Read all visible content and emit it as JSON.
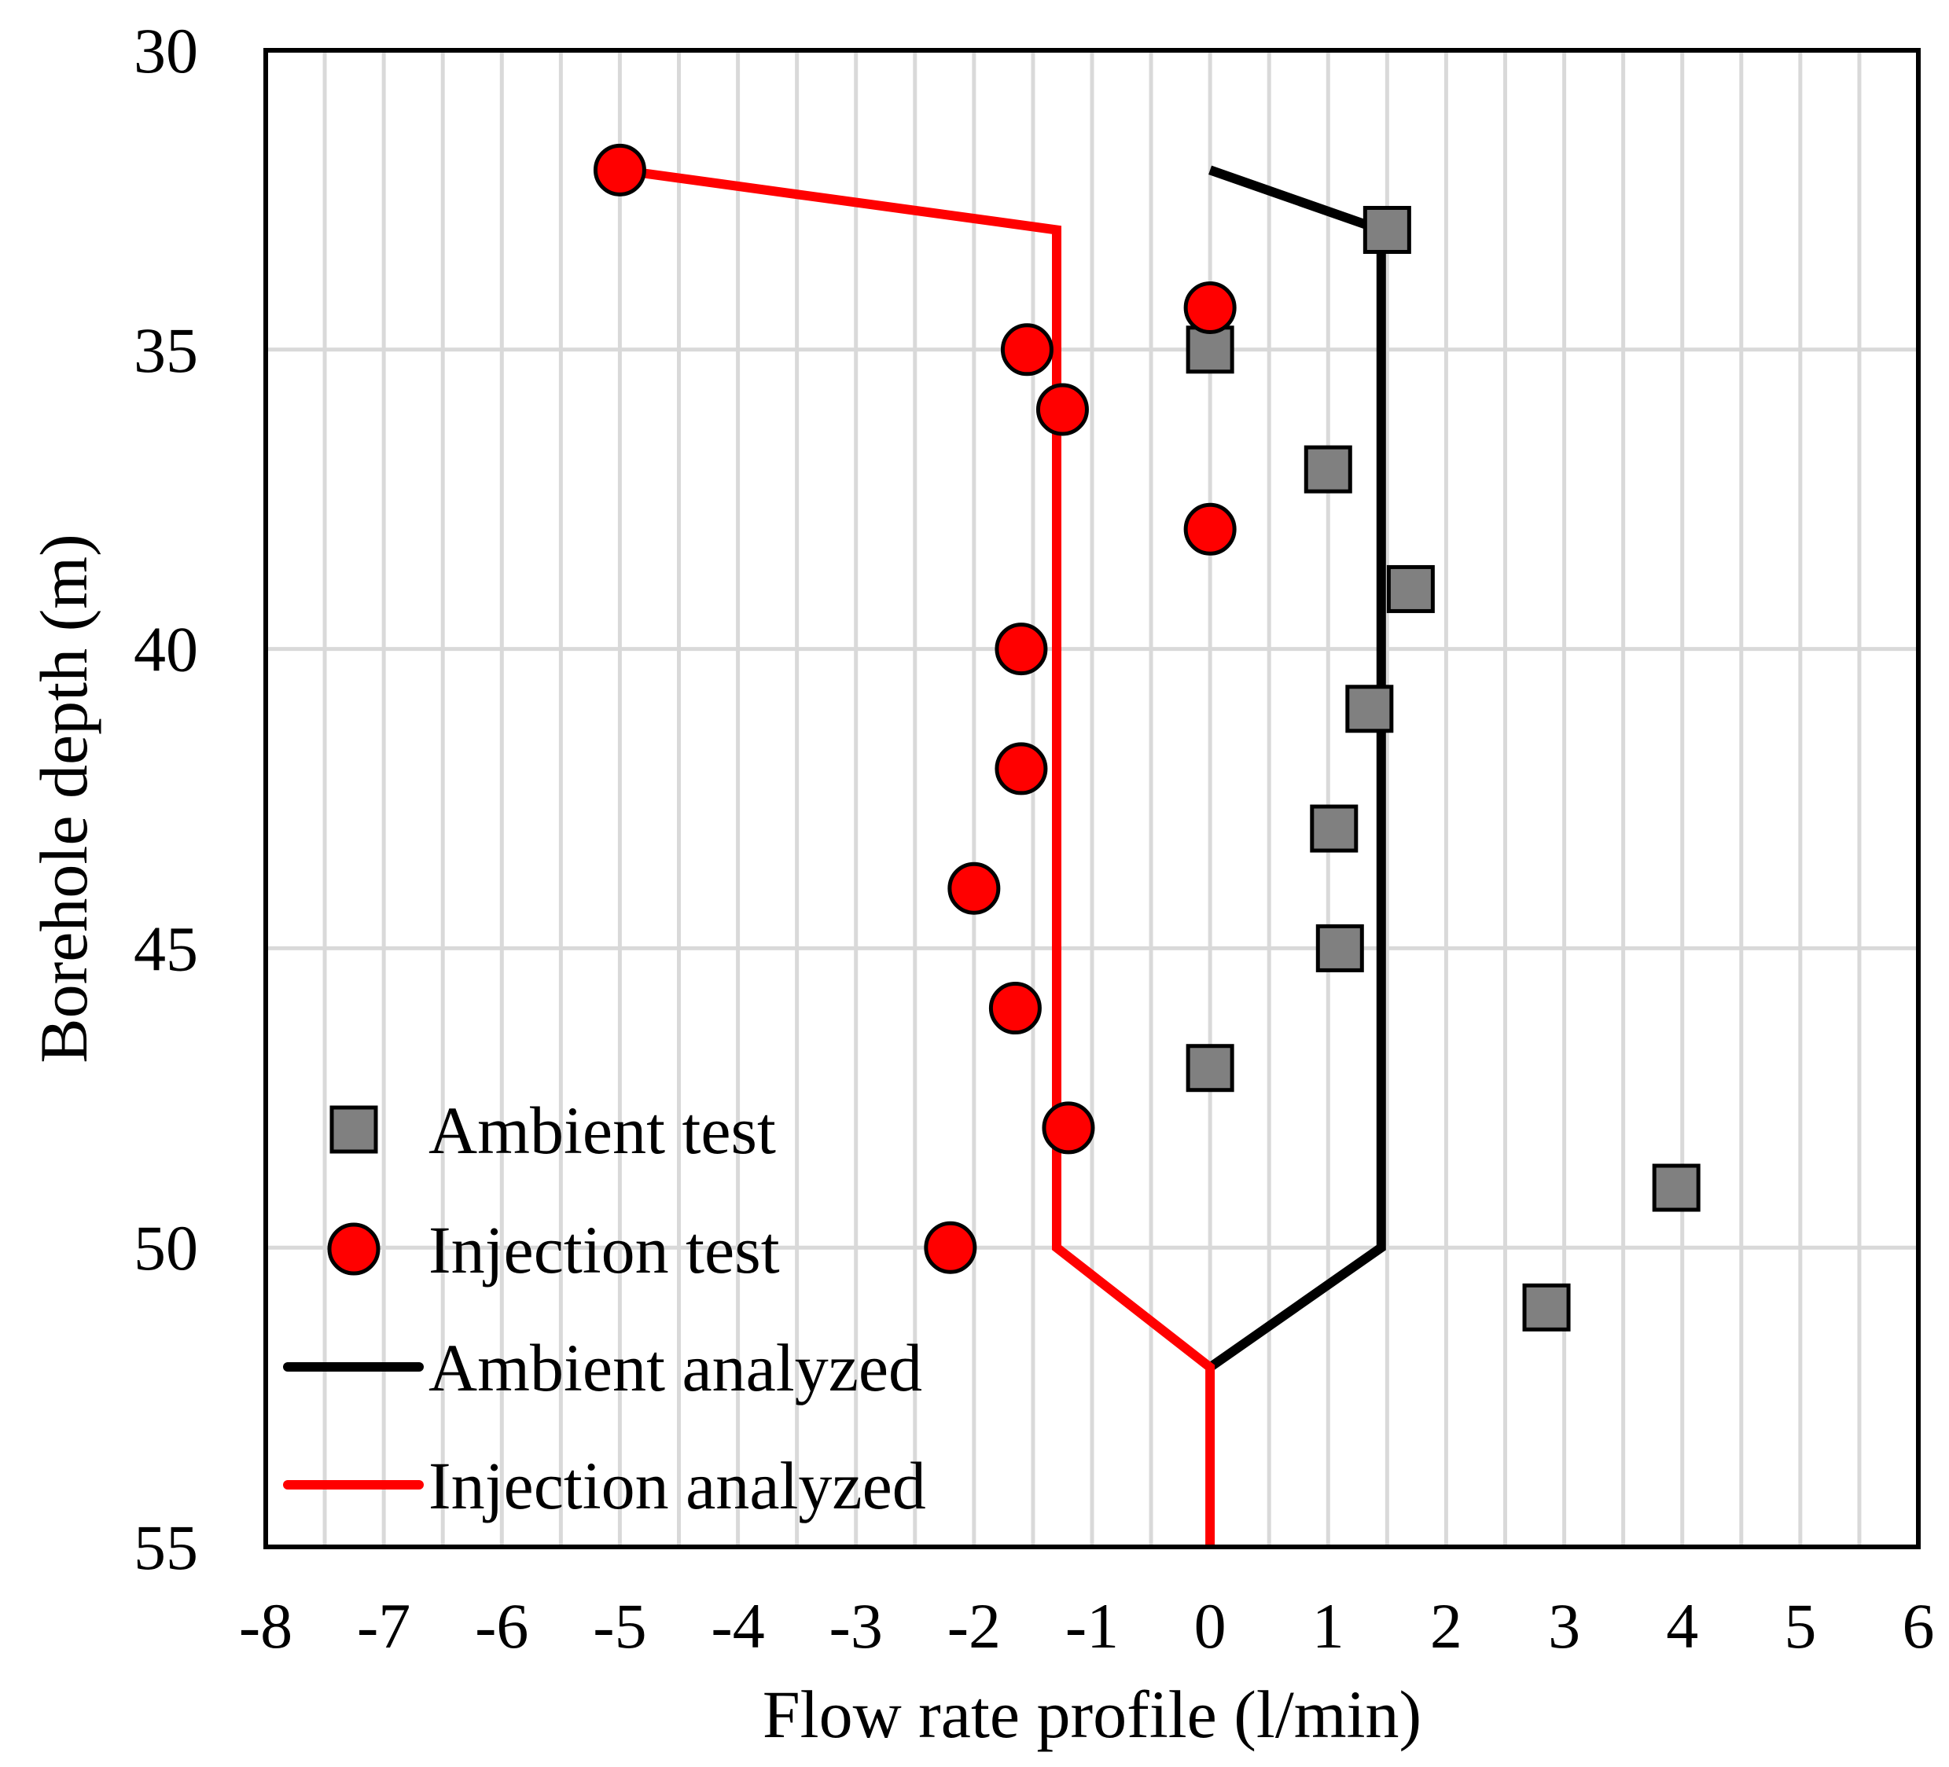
{
  "chart_data": {
    "type": "scatter",
    "title": "",
    "xlabel": "Flow rate profile (l/min)",
    "ylabel": "Borehole depth (m)",
    "xlim": [
      -8,
      6
    ],
    "ylim": [
      30,
      55
    ],
    "y_inverted": true,
    "x_ticks": [
      -8,
      -7,
      -6,
      -5,
      -4,
      -3,
      -2,
      -1,
      0,
      1,
      2,
      3,
      4,
      5,
      6
    ],
    "y_ticks": [
      30,
      35,
      40,
      45,
      50,
      55
    ],
    "x_gridlines_minor": [
      -7.5,
      -6.5,
      -5.5,
      -4.5,
      -3.5,
      -2.5,
      -1.5,
      -0.5,
      0.5,
      1.5,
      2.5,
      3.5,
      4.5,
      5.5
    ],
    "y_gridlines_minor": [],
    "grid": true,
    "legend_position": "bottom-left",
    "series": [
      {
        "name": "Ambient test",
        "kind": "marker-square",
        "color": "#808080",
        "points": [
          {
            "x": 1.5,
            "y": 33
          },
          {
            "x": 0,
            "y": 35
          },
          {
            "x": 1,
            "y": 37
          },
          {
            "x": 1.7,
            "y": 39
          },
          {
            "x": 1.35,
            "y": 41
          },
          {
            "x": 1.05,
            "y": 43
          },
          {
            "x": 1.1,
            "y": 45
          },
          {
            "x": 0,
            "y": 47
          },
          {
            "x": 3.95,
            "y": 49
          },
          {
            "x": 2.85,
            "y": 51
          }
        ]
      },
      {
        "name": "Injection test",
        "kind": "marker-circle",
        "color": "#ff0000",
        "points": [
          {
            "x": -5,
            "y": 32
          },
          {
            "x": 0,
            "y": 34.3
          },
          {
            "x": -1.55,
            "y": 35
          },
          {
            "x": -1.25,
            "y": 36
          },
          {
            "x": 0,
            "y": 38
          },
          {
            "x": -1.6,
            "y": 40
          },
          {
            "x": -1.6,
            "y": 42
          },
          {
            "x": -2,
            "y": 44
          },
          {
            "x": -1.65,
            "y": 46
          },
          {
            "x": -1.2,
            "y": 48
          },
          {
            "x": -2.2,
            "y": 50
          }
        ]
      },
      {
        "name": "Ambient analyzed",
        "kind": "line",
        "color": "#000000",
        "points": [
          {
            "x": 0,
            "y": 32
          },
          {
            "x": 1.45,
            "y": 33
          },
          {
            "x": 1.45,
            "y": 50
          },
          {
            "x": 0,
            "y": 52
          }
        ]
      },
      {
        "name": "Injection analyzed",
        "kind": "line",
        "color": "#ff0000",
        "points": [
          {
            "x": -5,
            "y": 32
          },
          {
            "x": -1.3,
            "y": 33
          },
          {
            "x": -1.3,
            "y": 50
          },
          {
            "x": 0,
            "y": 52
          },
          {
            "x": 0,
            "y": 55
          }
        ]
      }
    ]
  }
}
